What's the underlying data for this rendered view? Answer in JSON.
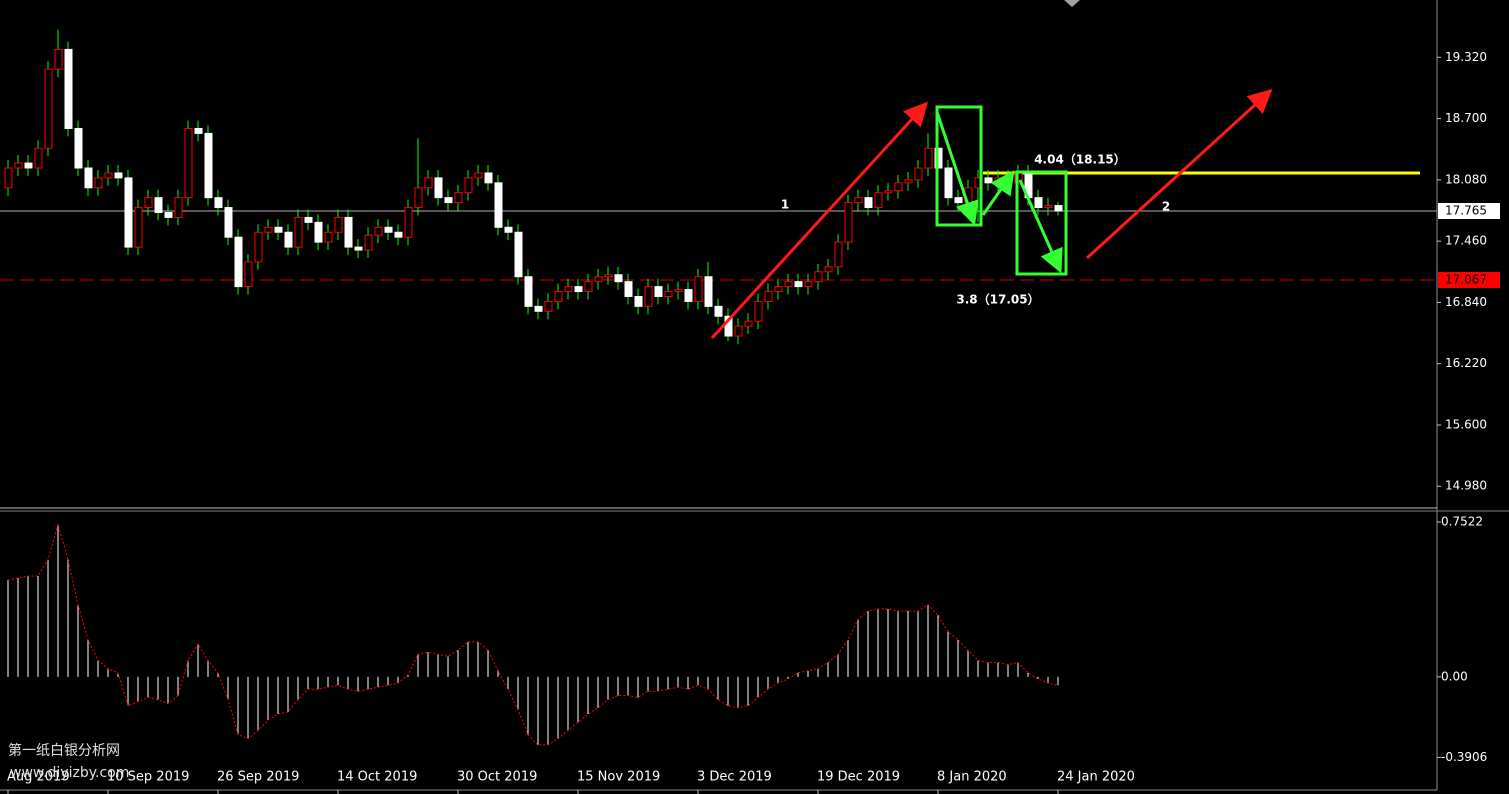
{
  "chart_data": [
    {
      "type": "candlestick",
      "categories": [
        "Aug 2019",
        null,
        null,
        null,
        null,
        null,
        null,
        null,
        null,
        null,
        "10 Sep 2019",
        null,
        null,
        null,
        null,
        null,
        null,
        null,
        null,
        null,
        null,
        "26 Sep 2019",
        null,
        null,
        null,
        null,
        null,
        null,
        null,
        null,
        null,
        null,
        null,
        "14 Oct 2019",
        null,
        null,
        null,
        null,
        null,
        null,
        null,
        null,
        null,
        null,
        null,
        "30 Oct 2019",
        null,
        null,
        null,
        null,
        null,
        null,
        null,
        null,
        null,
        null,
        null,
        "15 Nov 2019",
        null,
        null,
        null,
        null,
        null,
        null,
        null,
        null,
        null,
        null,
        null,
        "3 Dec 2019",
        null,
        null,
        null,
        null,
        null,
        null,
        null,
        null,
        null,
        null,
        null,
        "19 Dec 2019",
        null,
        null,
        null,
        null,
        null,
        null,
        null,
        null,
        null,
        null,
        null,
        "8 Jan 2020",
        null,
        null,
        null,
        null,
        null,
        null,
        null,
        null,
        null,
        null,
        null,
        "24 Jan 2020"
      ],
      "open": [
        18.0,
        18.2,
        18.25,
        18.2,
        18.4,
        19.2,
        19.4,
        18.6,
        18.2,
        18.0,
        18.1,
        18.15,
        18.1,
        17.4,
        17.8,
        17.9,
        17.75,
        17.7,
        17.9,
        18.6,
        18.55,
        17.9,
        17.8,
        17.5,
        17.0,
        17.25,
        17.55,
        17.6,
        17.55,
        17.4,
        17.7,
        17.65,
        17.45,
        17.55,
        17.7,
        17.4,
        17.37,
        17.52,
        17.6,
        17.55,
        17.5,
        17.8,
        18.0,
        18.1,
        17.9,
        17.85,
        17.95,
        18.1,
        18.15,
        18.05,
        17.6,
        17.55,
        17.1,
        16.8,
        16.75,
        16.85,
        16.95,
        17.0,
        16.95,
        17.05,
        17.1,
        17.12,
        17.05,
        16.9,
        16.8,
        17.0,
        16.9,
        16.95,
        16.97,
        16.85,
        17.1,
        16.8,
        16.7,
        16.5,
        16.6,
        16.65,
        16.85,
        16.95,
        17.0,
        17.05,
        17.0,
        17.05,
        17.15,
        17.2,
        17.45,
        17.85,
        17.9,
        17.8,
        17.95,
        17.97,
        18.05,
        18.08,
        18.2,
        18.4,
        18.2,
        17.9,
        17.85,
        18.0,
        18.1,
        18.05,
        18.1,
        18.05,
        18.15,
        17.9,
        17.8,
        17.82
      ],
      "high": [
        18.28,
        18.33,
        18.33,
        18.48,
        19.28,
        19.6,
        19.48,
        18.68,
        18.28,
        18.18,
        18.23,
        18.23,
        18.18,
        17.88,
        17.98,
        17.98,
        17.83,
        17.98,
        18.68,
        18.68,
        18.63,
        17.98,
        17.88,
        17.58,
        17.33,
        17.63,
        17.68,
        17.68,
        17.63,
        17.78,
        17.78,
        17.73,
        17.63,
        17.78,
        17.78,
        17.48,
        17.6,
        17.68,
        17.68,
        17.63,
        17.88,
        18.5,
        18.18,
        18.18,
        17.98,
        18.03,
        18.18,
        18.23,
        18.23,
        18.13,
        17.68,
        17.63,
        17.18,
        16.88,
        16.93,
        17.03,
        17.08,
        17.08,
        17.13,
        17.18,
        17.2,
        17.2,
        17.13,
        16.98,
        17.08,
        17.08,
        17.03,
        17.05,
        17.05,
        17.18,
        17.25,
        16.88,
        16.78,
        16.68,
        16.73,
        16.93,
        17.03,
        17.08,
        17.13,
        17.13,
        17.13,
        17.23,
        17.28,
        17.53,
        17.93,
        17.98,
        17.98,
        18.03,
        18.05,
        18.13,
        18.16,
        18.28,
        18.55,
        18.82,
        18.28,
        17.98,
        18.08,
        18.18,
        18.18,
        18.18,
        18.18,
        18.23,
        18.23,
        17.98,
        17.9,
        17.86
      ],
      "low": [
        17.92,
        18.12,
        18.12,
        18.12,
        18.32,
        19.12,
        18.52,
        18.12,
        17.92,
        17.92,
        18.02,
        18.02,
        17.32,
        17.32,
        17.72,
        17.67,
        17.62,
        17.62,
        17.82,
        18.47,
        17.82,
        17.72,
        17.42,
        16.92,
        16.92,
        17.17,
        17.47,
        17.47,
        17.32,
        17.32,
        17.57,
        17.37,
        17.37,
        17.47,
        17.32,
        17.29,
        17.29,
        17.44,
        17.47,
        17.42,
        17.42,
        17.72,
        17.92,
        17.82,
        17.77,
        17.77,
        17.87,
        18.02,
        17.97,
        17.52,
        17.47,
        17.02,
        16.72,
        16.67,
        16.67,
        16.77,
        16.87,
        16.87,
        16.87,
        16.97,
        17.02,
        16.97,
        16.82,
        16.72,
        16.72,
        16.82,
        16.82,
        16.87,
        16.77,
        16.77,
        16.72,
        16.62,
        16.45,
        16.42,
        16.52,
        16.57,
        16.77,
        16.87,
        16.92,
        16.92,
        16.92,
        16.97,
        17.07,
        17.12,
        17.37,
        17.77,
        17.72,
        17.72,
        17.87,
        17.89,
        17.97,
        18.0,
        18.12,
        18.12,
        17.82,
        17.77,
        17.77,
        17.65,
        17.97,
        17.97,
        17.97,
        17.97,
        17.82,
        17.72,
        17.72,
        17.72
      ],
      "close": [
        18.2,
        18.25,
        18.2,
        18.4,
        19.2,
        19.4,
        18.6,
        18.2,
        18.0,
        18.1,
        18.15,
        18.1,
        17.4,
        17.8,
        17.9,
        17.75,
        17.7,
        17.9,
        18.6,
        18.55,
        17.9,
        17.8,
        17.5,
        17.0,
        17.25,
        17.55,
        17.6,
        17.55,
        17.4,
        17.7,
        17.65,
        17.45,
        17.55,
        17.7,
        17.4,
        17.37,
        17.52,
        17.6,
        17.55,
        17.5,
        17.8,
        18.0,
        18.1,
        17.9,
        17.85,
        17.95,
        18.1,
        18.15,
        18.05,
        17.6,
        17.55,
        17.1,
        16.8,
        16.75,
        16.85,
        16.95,
        17.0,
        16.95,
        17.05,
        17.1,
        17.12,
        17.05,
        16.9,
        16.8,
        17.0,
        16.9,
        16.95,
        16.97,
        16.85,
        17.1,
        16.8,
        16.7,
        16.5,
        16.6,
        16.65,
        16.85,
        16.95,
        17.0,
        17.05,
        17.0,
        17.05,
        17.15,
        17.2,
        17.45,
        17.85,
        17.9,
        17.8,
        17.95,
        17.97,
        18.05,
        18.08,
        18.2,
        18.4,
        18.2,
        17.9,
        17.85,
        18.0,
        18.1,
        18.05,
        18.1,
        18.05,
        18.15,
        17.9,
        17.8,
        17.82,
        17.765
      ],
      "colors": {
        "up": "#000000",
        "up_border": "#ff0000",
        "down": "#ffffff",
        "wick": "#00ff00"
      },
      "ylim": [
        14.77,
        19.9
      ],
      "yticks": [
        {
          "value": 19.32,
          "label": "19.320"
        },
        {
          "value": 18.7,
          "label": "18.700"
        },
        {
          "value": 18.08,
          "label": "18.080"
        },
        {
          "value": 17.46,
          "label": "17.460"
        },
        {
          "value": 16.84,
          "label": "16.840"
        },
        {
          "value": 16.22,
          "label": "16.220"
        },
        {
          "value": 15.6,
          "label": "15.600"
        },
        {
          "value": 14.98,
          "label": "14.980"
        }
      ],
      "hlines": [
        {
          "value": 17.765,
          "label": "17.765",
          "color": "#b0b0b0",
          "box_color": "#ffffff"
        },
        {
          "value": 17.067,
          "label": "17.067",
          "color": "#e00000",
          "box_color": "#ff0000",
          "dashed": true
        },
        {
          "value": 18.15,
          "color": "#ffff00"
        }
      ],
      "annotations": [
        "1",
        "2",
        "4.04（18.15）",
        "3.8（17.05）"
      ]
    },
    {
      "type": "histogram",
      "values": [
        0.47,
        0.48,
        0.49,
        0.49,
        0.57,
        0.74,
        0.57,
        0.35,
        0.18,
        0.08,
        0.04,
        0.02,
        -0.14,
        -0.12,
        -0.1,
        -0.11,
        -0.13,
        -0.09,
        0.08,
        0.16,
        0.08,
        0.02,
        -0.11,
        -0.28,
        -0.3,
        -0.26,
        -0.21,
        -0.18,
        -0.17,
        -0.11,
        -0.06,
        -0.06,
        -0.05,
        -0.04,
        -0.06,
        -0.07,
        -0.06,
        -0.05,
        -0.04,
        -0.03,
        0.01,
        0.11,
        0.12,
        0.11,
        0.1,
        0.13,
        0.17,
        0.17,
        0.13,
        0.03,
        -0.06,
        -0.16,
        -0.28,
        -0.33,
        -0.33,
        -0.3,
        -0.26,
        -0.22,
        -0.18,
        -0.15,
        -0.11,
        -0.09,
        -0.09,
        -0.1,
        -0.07,
        -0.07,
        -0.06,
        -0.05,
        -0.06,
        -0.04,
        -0.06,
        -0.11,
        -0.14,
        -0.15,
        -0.14,
        -0.1,
        -0.06,
        -0.03,
        -0.01,
        0.02,
        0.03,
        0.04,
        0.07,
        0.11,
        0.18,
        0.28,
        0.32,
        0.33,
        0.33,
        0.32,
        0.32,
        0.32,
        0.35,
        0.3,
        0.22,
        0.18,
        0.13,
        0.08,
        0.07,
        0.07,
        0.06,
        0.07,
        0.02,
        -0.01,
        -0.03,
        -0.04
      ],
      "color": "#ffffff",
      "line_color": "#ff0000",
      "ylim": [
        -0.549,
        0.8056
      ],
      "yticks": [
        0.7522,
        {
          "value": 0,
          "label": "0.00"
        },
        -0.3906
      ]
    }
  ],
  "watermark": [
    "第一纸白银分析网",
    "www.diyizby.com"
  ]
}
